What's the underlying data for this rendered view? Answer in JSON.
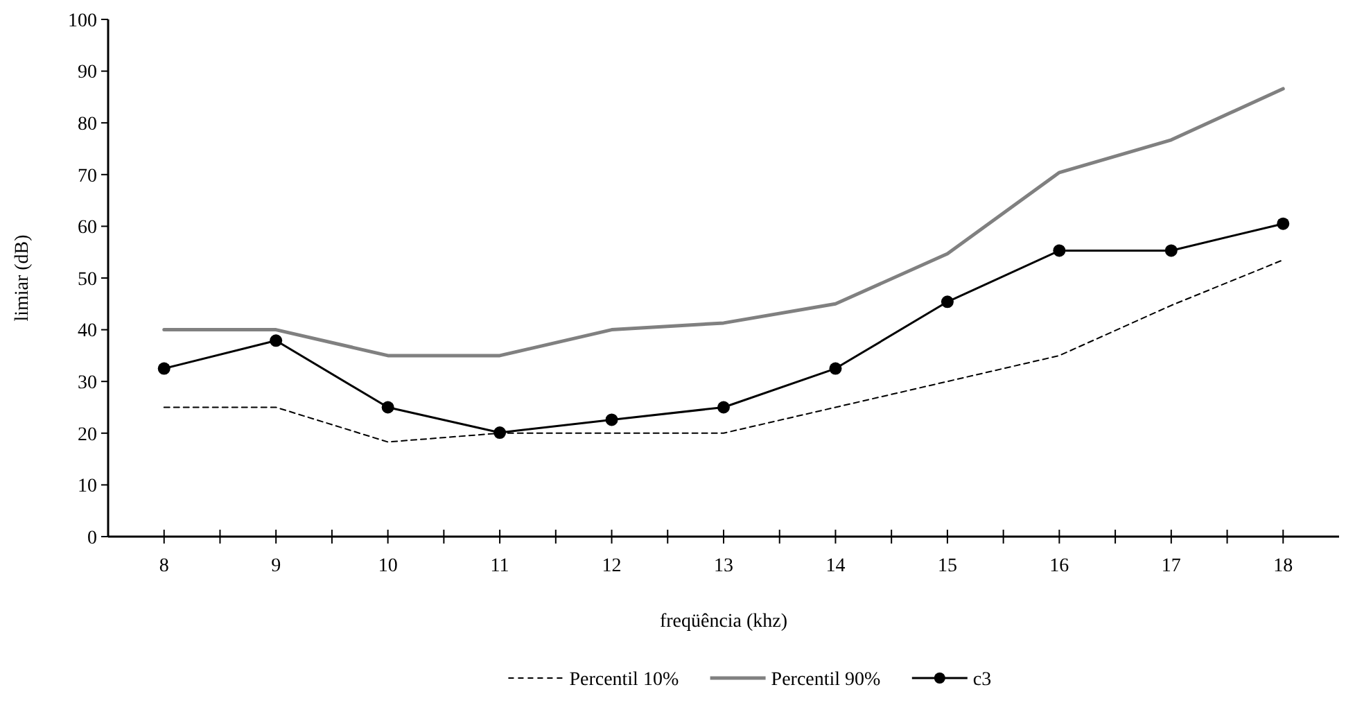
{
  "chart_data": {
    "type": "line",
    "xlabel": "freqüência (khz)",
    "ylabel": "limiar (dB)",
    "categories": [
      "8",
      "9",
      "10",
      "11",
      "12",
      "13",
      "14",
      "15",
      "16",
      "17",
      "18"
    ],
    "ylim": [
      0,
      100
    ],
    "yticks": [
      0,
      10,
      20,
      30,
      40,
      50,
      60,
      70,
      80,
      90,
      100
    ],
    "grid": false,
    "legend": "bottom",
    "series": [
      {
        "name": "Percentil 10%",
        "color": "#000000",
        "line_style": "dashed",
        "marker": "none",
        "values": [
          25,
          25,
          18.3,
          20,
          20,
          20,
          25,
          30,
          35,
          44.7,
          53.5
        ]
      },
      {
        "name": "Percentil 90%",
        "color": "#808080",
        "line_style": "solid",
        "marker": "none",
        "values": [
          40,
          40,
          35,
          35,
          40,
          41.3,
          45,
          54.7,
          70.4,
          76.7,
          86.6
        ]
      },
      {
        "name": "c3",
        "color": "#000000",
        "line_style": "solid",
        "marker": "circle",
        "values": [
          32.5,
          37.9,
          25,
          20.1,
          22.6,
          25,
          32.5,
          45.4,
          55.3,
          55.3,
          60.5
        ]
      }
    ]
  }
}
